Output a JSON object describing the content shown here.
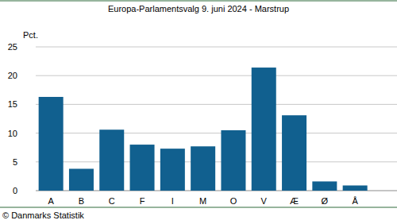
{
  "chart_data": {
    "type": "bar",
    "title": "Europa-Parlamentsvalg 9. juni 2024 - Marstrup",
    "y_label": "Pct.",
    "source": "© Danmarks Statistik",
    "categories": [
      "A",
      "B",
      "C",
      "F",
      "I",
      "M",
      "O",
      "V",
      "Æ",
      "Ø",
      "Å"
    ],
    "values": [
      16.3,
      3.8,
      10.6,
      8.0,
      7.3,
      7.7,
      10.5,
      21.4,
      13.1,
      1.6,
      0.9
    ],
    "color": "#11608f",
    "ylim": [
      0,
      25
    ],
    "yticks": [
      0,
      5,
      10,
      15,
      20,
      25
    ],
    "grid": true
  }
}
